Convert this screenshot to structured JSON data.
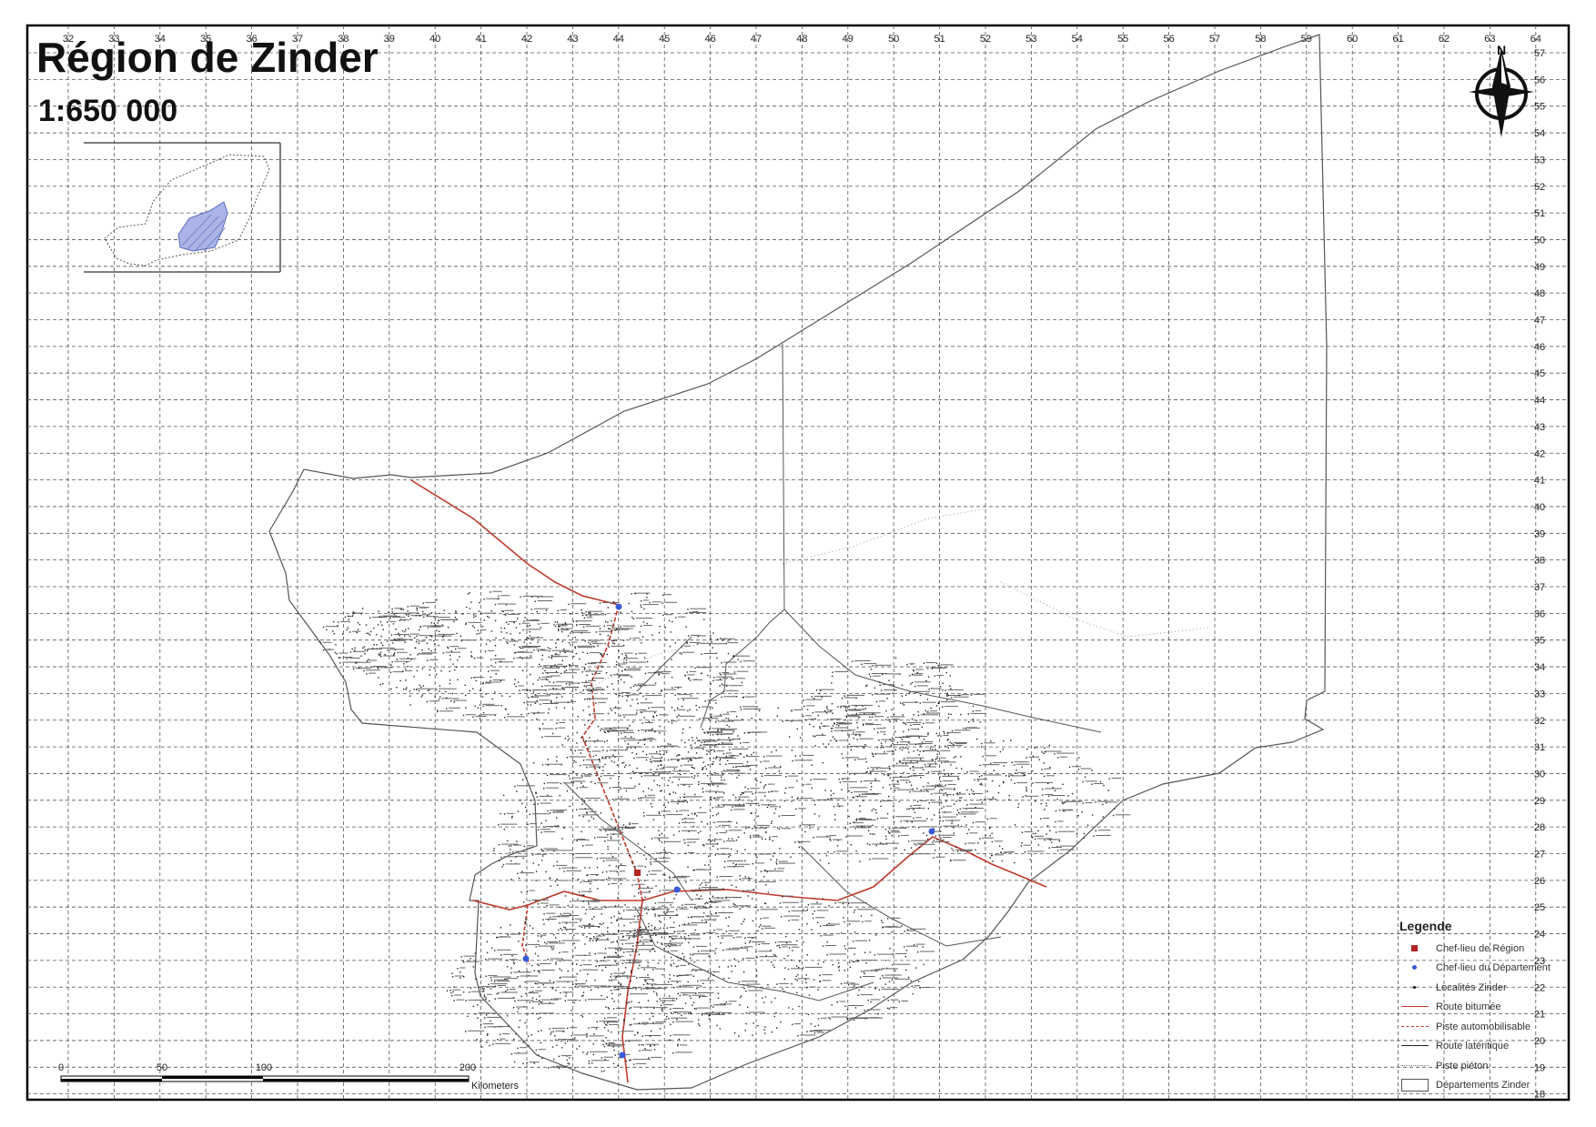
{
  "title": "Région de Zinder",
  "scale": "1:650 000",
  "grid": {
    "top_labels": [
      "32",
      "33",
      "34",
      "35",
      "36",
      "37",
      "38",
      "39",
      "40",
      "41",
      "42",
      "43",
      "44",
      "45",
      "46",
      "47",
      "48",
      "49",
      "50",
      "51",
      "52",
      "53",
      "54",
      "55",
      "56",
      "57",
      "58",
      "59",
      "60",
      "61",
      "62",
      "63",
      "64"
    ],
    "right_labels": [
      "57",
      "56",
      "55",
      "54",
      "53",
      "52",
      "51",
      "50",
      "49",
      "48",
      "47",
      "46",
      "45",
      "44",
      "43",
      "42",
      "41",
      "40",
      "39",
      "38",
      "37",
      "36",
      "35",
      "34",
      "33",
      "32",
      "31",
      "30",
      "29",
      "28",
      "27",
      "26",
      "25",
      "24",
      "23",
      "22",
      "21",
      "20",
      "19",
      "18"
    ]
  },
  "north_arrow": {
    "label": "N"
  },
  "scalebar": {
    "ticks": [
      "0",
      "50",
      "100",
      "200"
    ],
    "unit": "Kilometers"
  },
  "legend": {
    "title": "Legende",
    "items": [
      {
        "label": "Chef-lieu de Région",
        "symbol": "red-square-icon"
      },
      {
        "label": "Chef-lieu du Département",
        "symbol": "blue-dot-icon"
      },
      {
        "label": "Localités Zinder",
        "symbol": "black-dot-icon"
      },
      {
        "label": "Route bitumée",
        "symbol": "red-line-icon"
      },
      {
        "label": "Piste automobilisable",
        "symbol": "red-dashed-line-icon"
      },
      {
        "label": "Route latéritique",
        "symbol": "black-line-icon"
      },
      {
        "label": "Piste piéton",
        "symbol": "dotted-line-icon"
      },
      {
        "label": "Départements Zinder",
        "symbol": "polygon-icon"
      }
    ]
  },
  "colors": {
    "road_paved": "#c0392b",
    "prefecture": "#3a5bd9",
    "region_capital": "#b22222",
    "grid": "#444444"
  }
}
